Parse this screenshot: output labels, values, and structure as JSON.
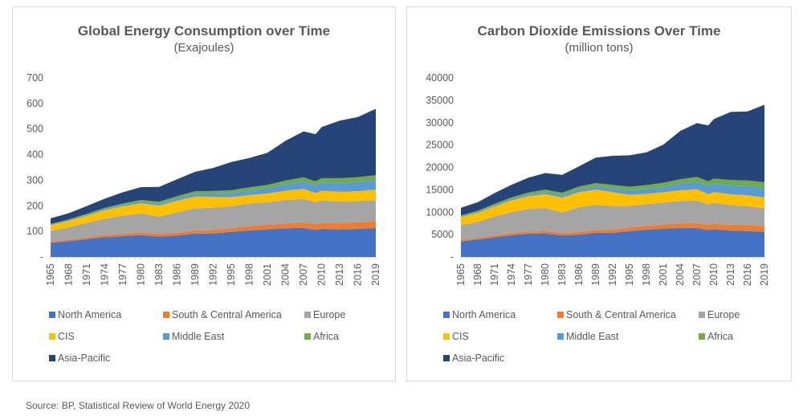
{
  "source": "Source: BP, Statistical Review of World Energy 2020",
  "colors": {
    "North America": "#4472c4",
    "South & Central America": "#ed7d31",
    "Europe": "#a5a5a5",
    "CIS": "#ffc000",
    "Middle East": "#5b9bd5",
    "Africa": "#70ad47",
    "Asia-Pacific": "#264478"
  },
  "chart_data": [
    {
      "type": "area",
      "stacked": true,
      "title": "Global Energy Consumption over Time",
      "subtitle": "(Exajoules)",
      "xlabel": "",
      "ylabel": "",
      "ylim": [
        0,
        700
      ],
      "yticks": [
        "-",
        "100",
        "200",
        "300",
        "400",
        "500",
        "600",
        "700"
      ],
      "xticks": [
        "1965",
        "1968",
        "1971",
        "1974",
        "1977",
        "1980",
        "1983",
        "1986",
        "1989",
        "1992",
        "1995",
        "1998",
        "2001",
        "2004",
        "2007",
        "2010",
        "2013",
        "2016",
        "2019"
      ],
      "legend": "bottom",
      "x": [
        1965,
        1968,
        1971,
        1974,
        1977,
        1980,
        1983,
        1986,
        1989,
        1992,
        1995,
        1998,
        2001,
        2004,
        2007,
        2009,
        2010,
        2013,
        2016,
        2019
      ],
      "series": [
        {
          "name": "North America",
          "values": [
            55,
            62,
            70,
            78,
            82,
            86,
            80,
            84,
            92,
            92,
            98,
            104,
            108,
            112,
            114,
            106,
            110,
            108,
            110,
            113
          ]
        },
        {
          "name": "South & Central America",
          "values": [
            5,
            6,
            7,
            8,
            9,
            10,
            10,
            11,
            12,
            13,
            15,
            17,
            18,
            19,
            21,
            22,
            23,
            25,
            26,
            26
          ]
        },
        {
          "name": "Europe",
          "values": [
            42,
            48,
            56,
            64,
            70,
            74,
            68,
            80,
            86,
            88,
            86,
            88,
            88,
            92,
            92,
            86,
            88,
            84,
            82,
            83
          ]
        },
        {
          "name": "CIS",
          "values": [
            22,
            25,
            28,
            33,
            37,
            40,
            43,
            45,
            46,
            42,
            35,
            33,
            34,
            36,
            39,
            36,
            38,
            38,
            39,
            41
          ]
        },
        {
          "name": "Middle East",
          "values": [
            2,
            2,
            3,
            4,
            5,
            6,
            7,
            9,
            11,
            13,
            16,
            18,
            21,
            25,
            29,
            30,
            32,
            35,
            36,
            38
          ]
        },
        {
          "name": "Africa",
          "values": [
            3,
            4,
            5,
            5,
            6,
            7,
            8,
            9,
            10,
            10,
            11,
            12,
            13,
            15,
            16,
            16,
            17,
            18,
            19,
            19
          ]
        },
        {
          "name": "Asia-Pacific",
          "values": [
            22,
            24,
            30,
            36,
            44,
            50,
            58,
            66,
            76,
            90,
            110,
            115,
            125,
            155,
            180,
            184,
            200,
            225,
            235,
            259
          ]
        }
      ]
    },
    {
      "type": "area",
      "stacked": true,
      "title": "Carbon Dioxide Emissions Over Time",
      "subtitle": "(million tons)",
      "xlabel": "",
      "ylabel": "",
      "ylim": [
        0,
        40000
      ],
      "yticks": [
        "-",
        "5000",
        "10000",
        "15000",
        "20000",
        "25000",
        "30000",
        "35000",
        "40000"
      ],
      "xticks": [
        "1965",
        "1968",
        "1971",
        "1974",
        "1977",
        "1980",
        "1983",
        "1986",
        "1989",
        "1992",
        "1995",
        "1998",
        "2001",
        "2004",
        "2007",
        "2009",
        "2010",
        "2013",
        "2016",
        "2019"
      ],
      "legend": "bottom",
      "x": [
        1965,
        1968,
        1971,
        1974,
        1977,
        1980,
        1983,
        1986,
        1989,
        1992,
        1995,
        1998,
        2001,
        2004,
        2007,
        2009,
        2010,
        2013,
        2016,
        2019
      ],
      "series": [
        {
          "name": "North America",
          "values": [
            3500,
            3900,
            4400,
            4900,
            5200,
            5300,
            4800,
            5000,
            5400,
            5400,
            5800,
            6100,
            6300,
            6500,
            6500,
            6000,
            6200,
            5900,
            5800,
            5600
          ]
        },
        {
          "name": "South & Central America",
          "values": [
            300,
            350,
            400,
            450,
            500,
            550,
            550,
            600,
            650,
            700,
            800,
            900,
            950,
            1000,
            1100,
            1150,
            1200,
            1300,
            1350,
            1300
          ]
        },
        {
          "name": "Europe",
          "values": [
            3300,
            3600,
            4200,
            4700,
            5000,
            5100,
            4600,
            5500,
            5600,
            5300,
            4800,
            4800,
            4900,
            5000,
            5000,
            4600,
            4700,
            4400,
            4200,
            4000
          ]
        },
        {
          "name": "CIS",
          "values": [
            1800,
            2000,
            2300,
            2600,
            2900,
            3100,
            3300,
            3400,
            3400,
            3100,
            2500,
            2300,
            2300,
            2400,
            2500,
            2300,
            2400,
            2400,
            2400,
            2400
          ]
        },
        {
          "name": "Middle East",
          "values": [
            150,
            180,
            220,
            280,
            350,
            450,
            500,
            600,
            750,
            850,
            1000,
            1100,
            1250,
            1450,
            1700,
            1750,
            1850,
            2000,
            2100,
            2100
          ]
        },
        {
          "name": "Africa",
          "values": [
            250,
            300,
            350,
            400,
            450,
            550,
            600,
            650,
            700,
            750,
            800,
            850,
            900,
            1000,
            1100,
            1100,
            1150,
            1200,
            1250,
            1300
          ]
        },
        {
          "name": "Asia-Pacific",
          "values": [
            1700,
            1900,
            2400,
            2800,
            3300,
            3700,
            4000,
            4500,
            5700,
            6500,
            7000,
            7300,
            8500,
            10800,
            12000,
            12500,
            13300,
            15200,
            15400,
            17300
          ]
        }
      ]
    }
  ]
}
